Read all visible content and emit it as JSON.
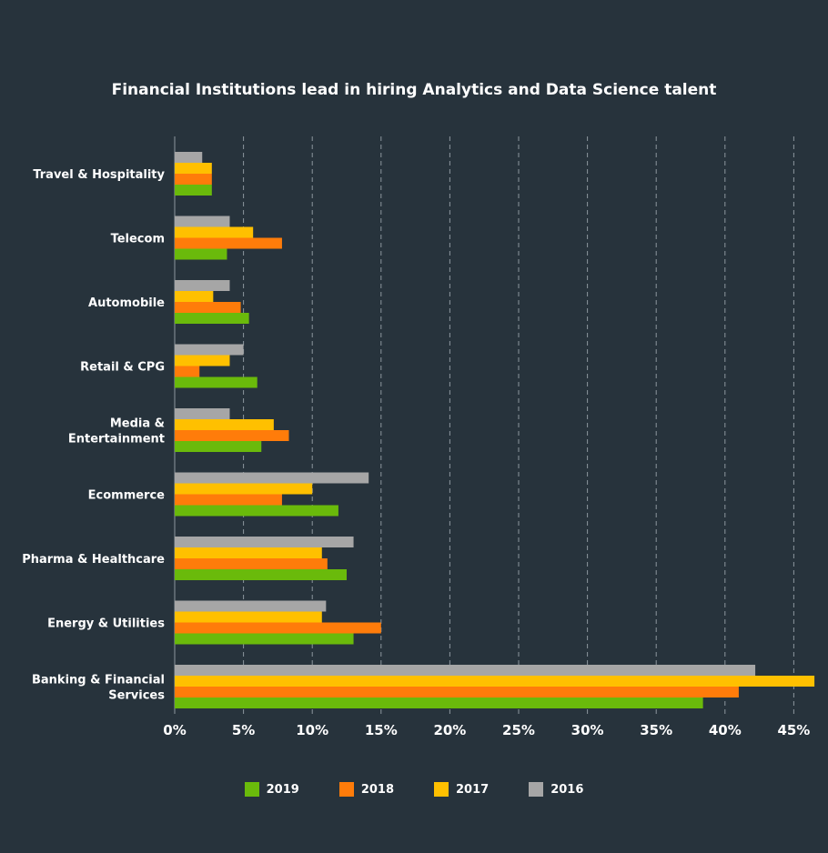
{
  "chart_data": {
    "type": "bar",
    "orientation": "horizontal",
    "title": "Financial Institutions lead in hiring Analytics and Data Science talent",
    "categories": [
      "Travel & Hospitality",
      "Telecom",
      "Automobile",
      "Retail & CPG",
      "Media & Entertainment",
      "Ecommerce",
      "Pharma & Healthcare",
      "Energy & Utilities",
      "Banking & Financial Services"
    ],
    "category_lines": [
      [
        "Travel & Hospitality"
      ],
      [
        "Telecom"
      ],
      [
        "Automobile"
      ],
      [
        "Retail & CPG"
      ],
      [
        "Media &",
        "Entertainment"
      ],
      [
        "Ecommerce"
      ],
      [
        "Pharma & Healthcare"
      ],
      [
        "Energy & Utilities"
      ],
      [
        "Banking & Financial",
        "Services"
      ]
    ],
    "series": [
      {
        "name": "2016",
        "color": "#a6a6a6",
        "values": [
          2.0,
          4.0,
          4.0,
          5.0,
          4.0,
          14.1,
          13.0,
          11.0,
          42.2
        ]
      },
      {
        "name": "2017",
        "color": "#ffc000",
        "values": [
          2.7,
          5.7,
          2.8,
          4.0,
          7.2,
          10.0,
          10.7,
          10.7,
          46.5
        ]
      },
      {
        "name": "2018",
        "color": "#ff7c0a",
        "values": [
          2.7,
          7.8,
          4.8,
          1.8,
          8.3,
          7.8,
          11.1,
          15.0,
          41.0
        ]
      },
      {
        "name": "2019",
        "color": "#6aba0b",
        "values": [
          2.7,
          3.8,
          5.4,
          6.0,
          6.3,
          11.9,
          12.5,
          13.0,
          38.4
        ]
      }
    ],
    "xlim": [
      0,
      45
    ],
    "xticks": [
      "0%",
      "5%",
      "10%",
      "15%",
      "20%",
      "25%",
      "30%",
      "35%",
      "40%",
      "45%"
    ],
    "xtick_values": [
      0,
      5,
      10,
      15,
      20,
      25,
      30,
      35,
      40,
      45
    ],
    "grid": true,
    "legend_position": "bottom",
    "legend_order": [
      "2019",
      "2018",
      "2017",
      "2016"
    ]
  }
}
